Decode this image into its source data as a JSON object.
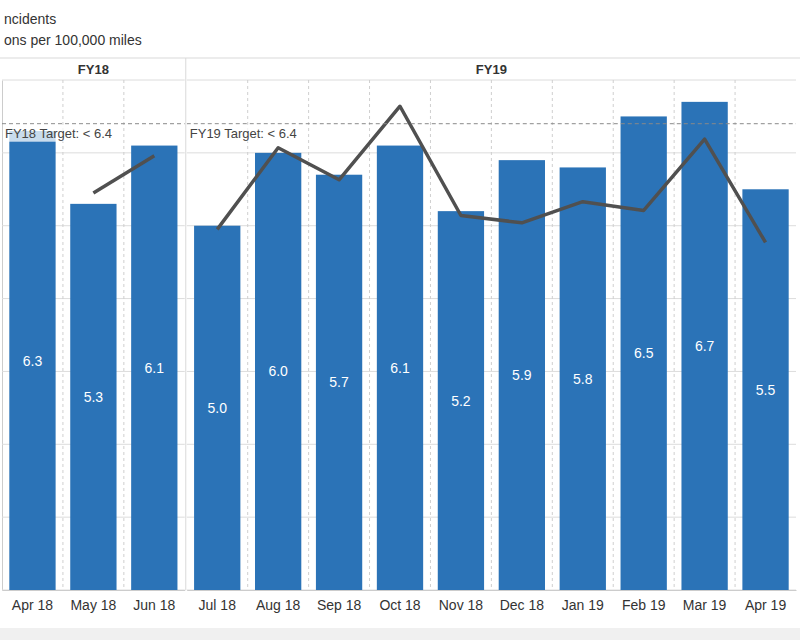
{
  "chart_data": {
    "type": "bar",
    "title": "ncidents",
    "subtitle": "ons per 100,000 miles",
    "ylim": [
      0,
      7
    ],
    "yticks": [
      0,
      1,
      2,
      3,
      4,
      5,
      6,
      7
    ],
    "grid": true,
    "tick_labels": "x",
    "data_labels": true,
    "panels": [
      {
        "title": "FY18",
        "categories": [
          "Apr 18",
          "May 18",
          "Jun 18"
        ],
        "series": [
          {
            "type": "bar",
            "color": "#2b73b7",
            "values": [
              6.3,
              5.3,
              6.1
            ],
            "value_labels": [
              "6.3",
              "5.3",
              "6.1"
            ]
          },
          {
            "type": "line",
            "color": "#505050",
            "line_style": "solid",
            "values": [
              null,
              5.45,
              5.96
            ]
          }
        ],
        "target": 6.4,
        "target_label": "FY18 Target: < 6.4"
      },
      {
        "title": "FY19",
        "categories": [
          "Jul 18",
          "Aug 18",
          "Sep 18",
          "Oct 18",
          "Nov 18",
          "Dec 18",
          "Jan 19",
          "Feb 19",
          "Mar 19",
          "Apr 19"
        ],
        "series": [
          {
            "type": "bar",
            "color": "#2b73b7",
            "values": [
              5.0,
              6.0,
              5.7,
              6.1,
              5.2,
              5.9,
              5.8,
              6.5,
              6.7,
              5.5
            ],
            "value_labels": [
              "5.0",
              "6.0",
              "5.7",
              "6.1",
              "5.2",
              "5.9",
              "5.8",
              "6.5",
              "6.7",
              "5.5"
            ]
          },
          {
            "type": "line",
            "color": "#505050",
            "line_style": "solid",
            "values": [
              4.95,
              6.07,
              5.63,
              6.64,
              5.14,
              5.04,
              5.33,
              5.21,
              6.19,
              4.77
            ]
          }
        ],
        "target": 6.4,
        "target_label": "FY19 Target: < 6.4"
      }
    ]
  }
}
